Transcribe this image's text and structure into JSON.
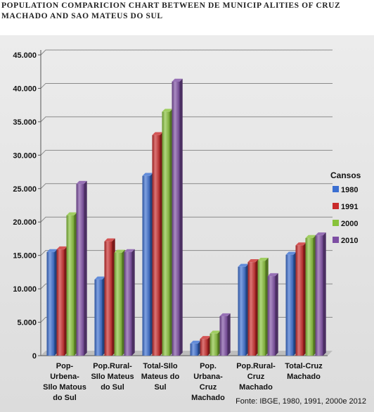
{
  "chart_data": {
    "type": "bar",
    "title": "POPULATION COMPARICION CHART BETWEEN DE MUNICIP ALITIES OF CRUZ MACHADO AND SAO MATEUS DO SUL",
    "categories": [
      [
        "Pop-",
        "Urbena-",
        "SIlo Matous",
        "do Sul"
      ],
      [
        "Pop.Rural-",
        "SIlo Mateus",
        "do Sul"
      ],
      [
        "Total-SIlo",
        "Mateus do",
        "Sul"
      ],
      [
        "Pop.",
        "Urbana-",
        "Cruz",
        "Machado"
      ],
      [
        "Pop.Rural-",
        "Cruz",
        "Machado"
      ],
      [
        "Total-Cruz",
        "Machado"
      ]
    ],
    "legend_title": "Cansos",
    "legend_position": "right",
    "series": [
      {
        "name": "1980",
        "color": "#3b6fd1",
        "values": [
          15500,
          11400,
          26900,
          1800,
          13300,
          15100
        ]
      },
      {
        "name": "1991",
        "color": "#c92a2a",
        "values": [
          15900,
          17100,
          33000,
          2500,
          14000,
          16500
        ]
      },
      {
        "name": "2000",
        "color": "#88c23a",
        "values": [
          21000,
          15400,
          36500,
          3300,
          14200,
          17600
        ]
      },
      {
        "name": "2010",
        "color": "#7d4ea3",
        "values": [
          25700,
          15500,
          41000,
          5900,
          11900,
          18000
        ]
      }
    ],
    "ylim": [
      0,
      45000
    ],
    "yticks": [
      "0",
      "5.000",
      "10.000",
      "15.000",
      "20.000",
      "25.000",
      "30.000",
      "35.000",
      "40.000",
      "45.000"
    ],
    "grid": true,
    "source": "Fonte: IBGE, 1980, 1991, 2000e 2012"
  }
}
